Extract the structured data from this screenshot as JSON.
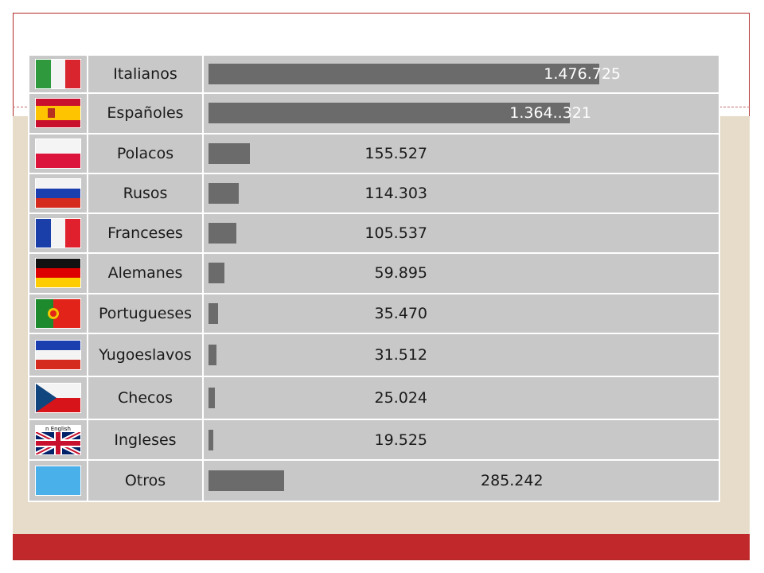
{
  "chart_data": {
    "type": "bar",
    "orientation": "horizontal",
    "categories": [
      "Italianos",
      "Españoles",
      "Polacos",
      "Rusos",
      "Franceses",
      "Alemanes",
      "Portugueses",
      "Yugoeslavos",
      "Checos",
      "Ingleses",
      "Otros"
    ],
    "values": [
      1476725,
      1364321,
      155527,
      114303,
      105537,
      59895,
      35470,
      31512,
      25024,
      19525,
      285242
    ],
    "value_labels": [
      "1.476.725",
      "1.364..321",
      "155.527",
      "114.303",
      "105.537",
      "59.895",
      "35.470",
      "31.512",
      "25.024",
      "19.525",
      "285.242"
    ],
    "xlim": [
      0,
      1476725
    ],
    "grid": false,
    "bar_color": "#6b6b6b"
  },
  "rows": [
    {
      "flag_icon": "italy-flag-icon",
      "caption": ""
    },
    {
      "flag_icon": "spain-flag-icon",
      "caption": ""
    },
    {
      "flag_icon": "poland-flag-icon",
      "caption": ""
    },
    {
      "flag_icon": "russia-flag-icon",
      "caption": ""
    },
    {
      "flag_icon": "france-flag-icon",
      "caption": ""
    },
    {
      "flag_icon": "germany-flag-icon",
      "caption": ""
    },
    {
      "flag_icon": "portugal-flag-icon",
      "caption": ""
    },
    {
      "flag_icon": "yugoslavia-flag-icon",
      "caption": ""
    },
    {
      "flag_icon": "czech-flag-icon",
      "caption": ""
    },
    {
      "flag_icon": "uk-flag-icon",
      "caption": "n English"
    },
    {
      "flag_icon": "other-flag-icon",
      "caption": ""
    }
  ],
  "colors": {
    "frame_border": "#b02a2a",
    "beige_band": "#e7dcc9",
    "bottom_bar": "#c0282b",
    "cell_background": "#c8c8c8"
  }
}
